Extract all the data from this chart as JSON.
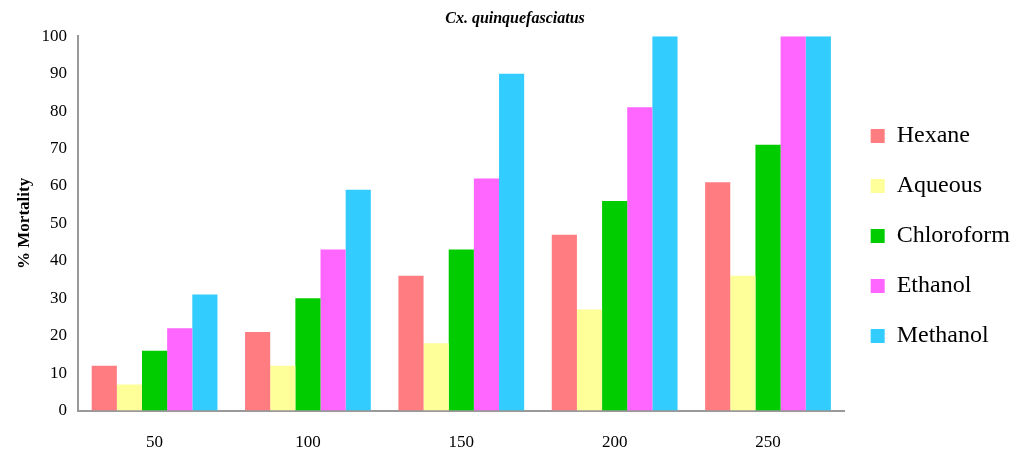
{
  "chart_data": {
    "type": "bar",
    "title": "Cx. quinquefasciatus",
    "ylabel": "% Mortality",
    "categories": [
      "50",
      "100",
      "150",
      "200",
      "250"
    ],
    "series": [
      {
        "name": "Hexane",
        "color": "#ff7c80",
        "values": [
          12,
          21,
          36,
          47,
          61
        ]
      },
      {
        "name": "Aqueous",
        "color": "#ffff99",
        "values": [
          7,
          12,
          18,
          27,
          36
        ]
      },
      {
        "name": "Chloroform",
        "color": "#00cc00",
        "values": [
          16,
          30,
          43,
          56,
          71
        ]
      },
      {
        "name": "Ethanol",
        "color": "#ff66ff",
        "values": [
          22,
          43,
          62,
          81,
          100
        ]
      },
      {
        "name": "Methanol",
        "color": "#33ccff",
        "values": [
          31,
          59,
          90,
          100,
          100
        ]
      }
    ],
    "ylim": [
      0,
      100
    ],
    "yticks": [
      0,
      10,
      20,
      30,
      40,
      50,
      60,
      70,
      80,
      90,
      100
    ],
    "grid": false,
    "legend": "right"
  }
}
